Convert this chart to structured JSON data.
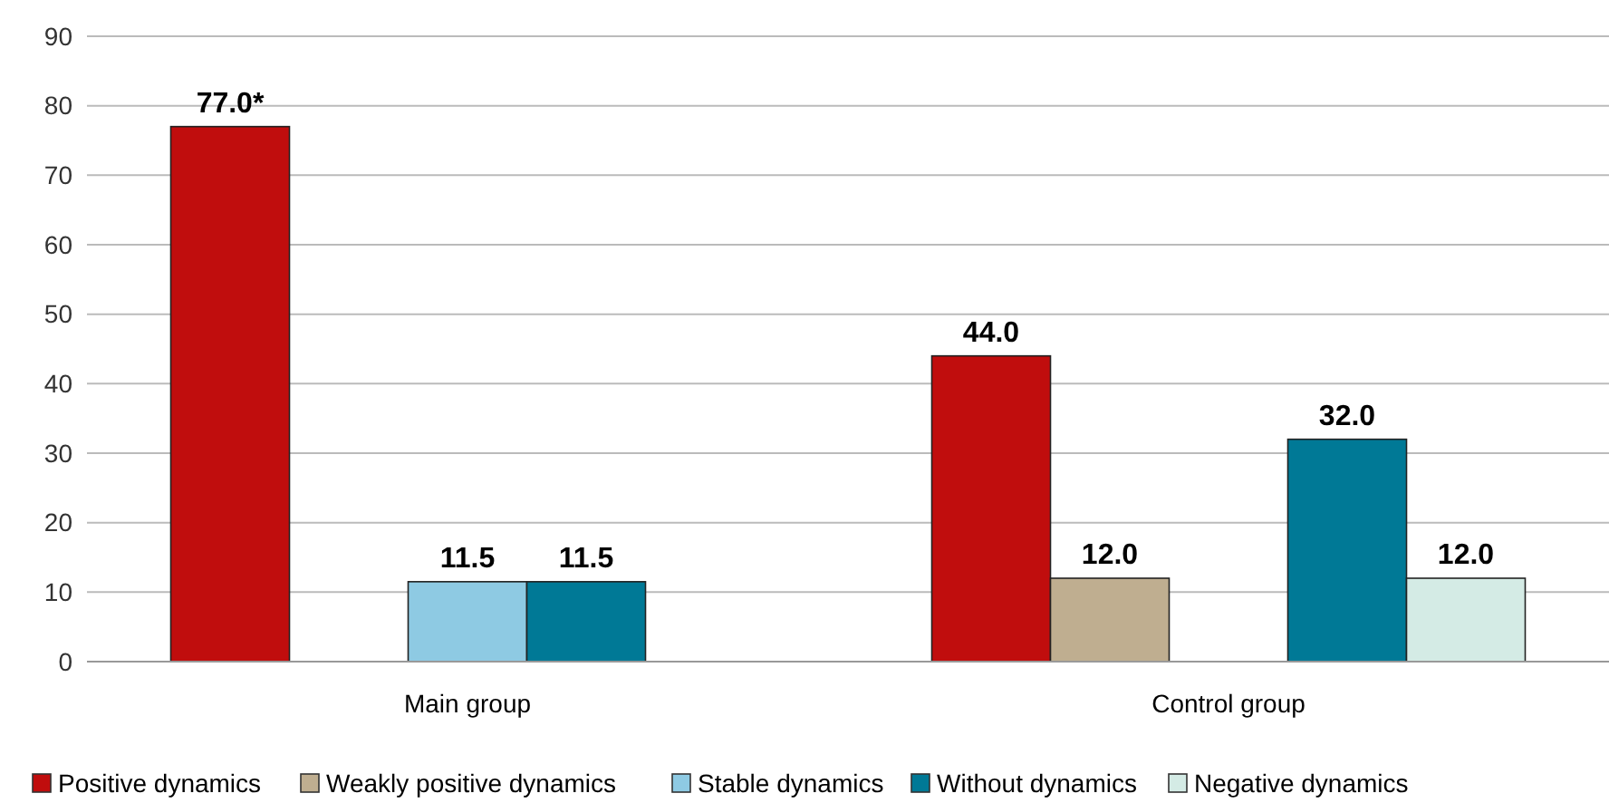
{
  "chart_data": {
    "type": "bar",
    "categories": [
      "Main group",
      "Control group"
    ],
    "series": [
      {
        "name": "Positive dynamics",
        "color": "#c00d0d",
        "values": [
          77.0,
          44.0
        ],
        "value_labels": [
          "77.0*",
          "44.0"
        ]
      },
      {
        "name": "Weakly positive dynamics",
        "color": "#bfae90",
        "values": [
          null,
          12.0
        ],
        "value_labels": [
          null,
          "12.0"
        ]
      },
      {
        "name": "Stable dynamics",
        "color": "#8ecae3",
        "values": [
          11.5,
          null
        ],
        "value_labels": [
          "11.5",
          null
        ]
      },
      {
        "name": "Without dynamics",
        "color": "#007996",
        "values": [
          11.5,
          32.0
        ],
        "value_labels": [
          "11.5",
          "32.0"
        ]
      },
      {
        "name": "Negative dynamics",
        "color": "#d4ebe5",
        "values": [
          null,
          12.0
        ],
        "value_labels": [
          null,
          "12.0"
        ]
      }
    ],
    "ylim": [
      0,
      90
    ],
    "yticks": [
      0,
      10,
      20,
      30,
      40,
      50,
      60,
      70,
      80,
      90
    ],
    "grid": "y",
    "legend": "bottom"
  }
}
